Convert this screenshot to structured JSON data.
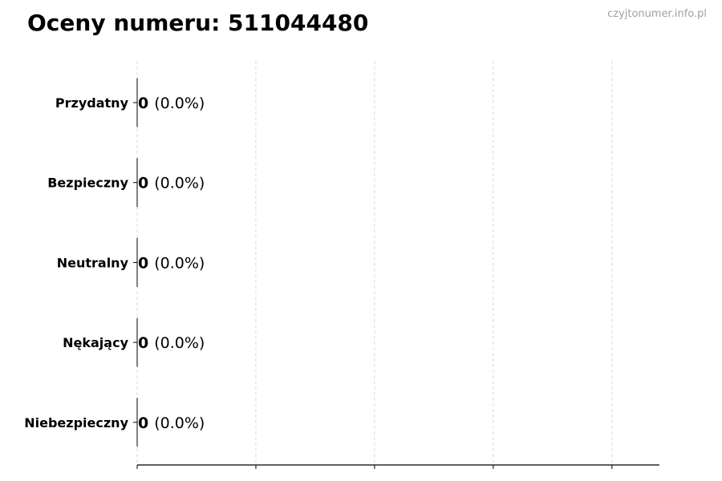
{
  "title": "Oceny numeru: 511044480",
  "watermark": "czyjtonumer.info.pl",
  "chart_data": {
    "type": "bar",
    "orientation": "horizontal",
    "title": "Oceny numeru: 511044480",
    "categories": [
      "Przydatny",
      "Bezpieczny",
      "Neutralny",
      "Nękający",
      "Niebezpieczny"
    ],
    "values": [
      0,
      0,
      0,
      0,
      0
    ],
    "labels": [
      {
        "count": "0",
        "pct": "(0.0%)"
      },
      {
        "count": "0",
        "pct": "(0.0%)"
      },
      {
        "count": "0",
        "pct": "(0.0%)"
      },
      {
        "count": "0",
        "pct": "(0.0%)"
      },
      {
        "count": "0",
        "pct": "(0.0%)"
      }
    ],
    "xlim": [
      0,
      4.4
    ],
    "x_ticks": [
      0,
      1,
      2,
      3,
      4
    ],
    "x_tick_labels_shown": false,
    "grid": "x dashed",
    "xlabel": "",
    "ylabel": ""
  }
}
